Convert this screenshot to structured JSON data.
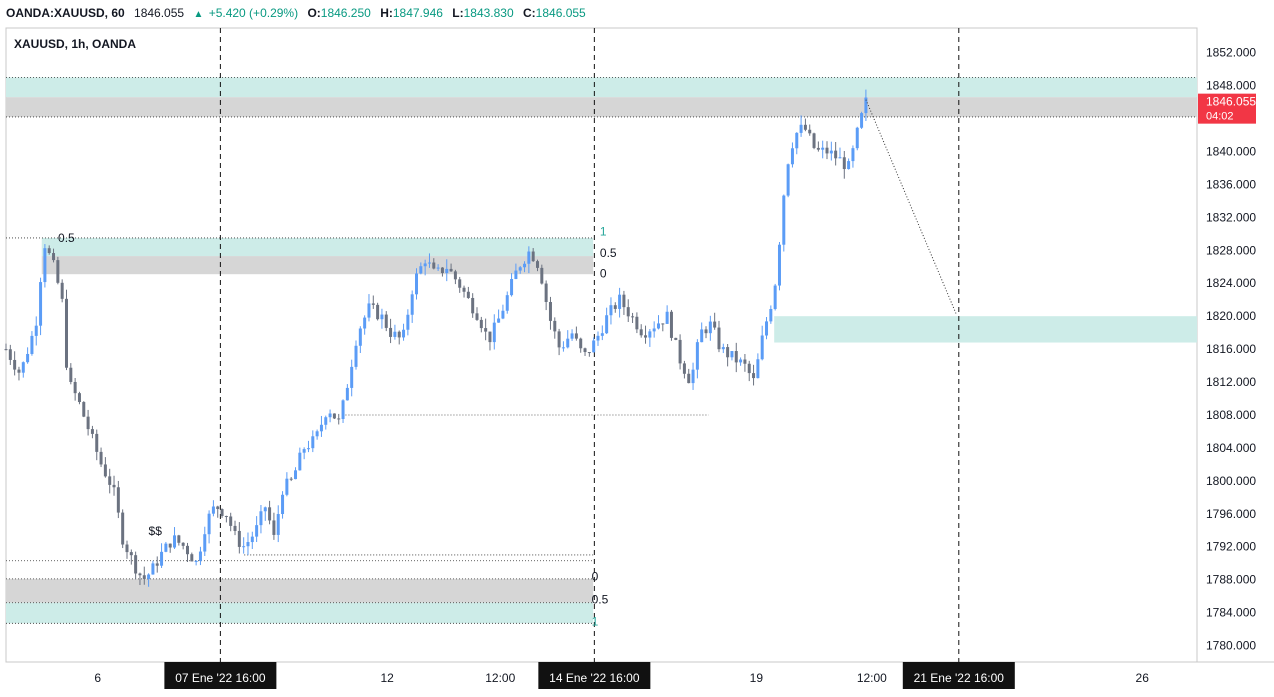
{
  "header": {
    "symbol": "OANDA:XAUUSD, 60",
    "last": "1846.055",
    "change": "+5.420 (+0.29%)",
    "o_label": "O:",
    "o_value": "1846.250",
    "h_label": "H:",
    "h_value": "1847.946",
    "l_label": "L:",
    "l_value": "1843.830",
    "c_label": "C:",
    "c_value": "1846.055",
    "up_icon": "triangle-up-icon"
  },
  "legend": "XAUUSD, 1h, OANDA",
  "price_tag": {
    "price": "1846.055",
    "countdown": "04:02",
    "color": "#f23645"
  },
  "colors": {
    "zone_teal": "#cdece8",
    "zone_gray": "#d6d6d6",
    "candle_up": "#5b9cf6",
    "candle_down": "#6b7280",
    "fib_teal": "#26a69a"
  },
  "chart_data": {
    "type": "candlestick",
    "ylim": [
      1778,
      1855
    ],
    "y_ticks": [
      "1852.000",
      "1848.000",
      "1844.000",
      "1840.000",
      "1836.000",
      "1832.000",
      "1828.000",
      "1824.000",
      "1820.000",
      "1816.000",
      "1812.000",
      "1808.000",
      "1804.000",
      "1800.000",
      "1796.000",
      "1792.000",
      "1788.000",
      "1784.000",
      "1780.000"
    ],
    "y_tick_values": [
      1852,
      1848,
      1844,
      1840,
      1836,
      1832,
      1828,
      1824,
      1820,
      1816,
      1812,
      1808,
      1804,
      1800,
      1796,
      1792,
      1788,
      1784,
      1780
    ],
    "x_ticks": [
      {
        "label": "6",
        "t": 0.077
      },
      {
        "label": "12",
        "t": 0.32
      },
      {
        "label": "12:00",
        "t": 0.415
      },
      {
        "label": "19",
        "t": 0.63
      },
      {
        "label": "12:00",
        "t": 0.727
      },
      {
        "label": "26",
        "t": 0.954
      }
    ],
    "x_highlight_labels": [
      {
        "label": "07 Ene '22   16:00",
        "t": 0.18
      },
      {
        "label": "14 Ene '22   16:00",
        "t": 0.494
      },
      {
        "label": "21 Ene '22   16:00",
        "t": 0.8
      }
    ],
    "path_points": [
      [
        0.0,
        1816
      ],
      [
        0.012,
        1813
      ],
      [
        0.025,
        1819
      ],
      [
        0.032,
        1829
      ],
      [
        0.04,
        1826
      ],
      [
        0.047,
        1822
      ],
      [
        0.052,
        1812
      ],
      [
        0.06,
        1810
      ],
      [
        0.07,
        1806
      ],
      [
        0.08,
        1802
      ],
      [
        0.09,
        1799
      ],
      [
        0.098,
        1793
      ],
      [
        0.107,
        1790
      ],
      [
        0.115,
        1788
      ],
      [
        0.122,
        1789
      ],
      [
        0.13,
        1791
      ],
      [
        0.14,
        1793
      ],
      [
        0.15,
        1792
      ],
      [
        0.16,
        1790
      ],
      [
        0.168,
        1795
      ],
      [
        0.176,
        1797
      ],
      [
        0.185,
        1796
      ],
      [
        0.193,
        1793
      ],
      [
        0.2,
        1792
      ],
      [
        0.21,
        1794
      ],
      [
        0.218,
        1797
      ],
      [
        0.225,
        1793
      ],
      [
        0.232,
        1799
      ],
      [
        0.24,
        1800
      ],
      [
        0.25,
        1804
      ],
      [
        0.26,
        1805
      ],
      [
        0.27,
        1809
      ],
      [
        0.28,
        1807
      ],
      [
        0.287,
        1812
      ],
      [
        0.295,
        1818
      ],
      [
        0.305,
        1821
      ],
      [
        0.315,
        1820
      ],
      [
        0.323,
        1818
      ],
      [
        0.333,
        1817
      ],
      [
        0.342,
        1824
      ],
      [
        0.352,
        1827
      ],
      [
        0.36,
        1825
      ],
      [
        0.37,
        1826
      ],
      [
        0.38,
        1824
      ],
      [
        0.388,
        1822
      ],
      [
        0.397,
        1820
      ],
      [
        0.405,
        1817
      ],
      [
        0.412,
        1819
      ],
      [
        0.42,
        1822
      ],
      [
        0.43,
        1826
      ],
      [
        0.44,
        1828
      ],
      [
        0.448,
        1826
      ],
      [
        0.456,
        1820
      ],
      [
        0.465,
        1816
      ],
      [
        0.475,
        1818
      ],
      [
        0.485,
        1815
      ],
      [
        0.495,
        1817
      ],
      [
        0.505,
        1820
      ],
      [
        0.515,
        1822
      ],
      [
        0.525,
        1820
      ],
      [
        0.535,
        1818
      ],
      [
        0.545,
        1819
      ],
      [
        0.555,
        1820
      ],
      [
        0.565,
        1815
      ],
      [
        0.575,
        1812
      ],
      [
        0.583,
        1818
      ],
      [
        0.592,
        1819
      ],
      [
        0.6,
        1816
      ],
      [
        0.61,
        1815
      ],
      [
        0.62,
        1814
      ],
      [
        0.628,
        1812
      ],
      [
        0.636,
        1818
      ],
      [
        0.645,
        1823
      ],
      [
        0.65,
        1830
      ],
      [
        0.655,
        1838
      ],
      [
        0.662,
        1842
      ],
      [
        0.67,
        1843
      ],
      [
        0.68,
        1840
      ],
      [
        0.69,
        1840
      ],
      [
        0.7,
        1839
      ],
      [
        0.708,
        1838
      ],
      [
        0.716,
        1843
      ],
      [
        0.722,
        1846
      ]
    ],
    "annotations": [
      {
        "text": "0.5",
        "series": "fib-upper-left"
      },
      {
        "text": "1",
        "series": "fib-upper"
      },
      {
        "text": "0.5",
        "series": "fib-upper"
      },
      {
        "text": "0",
        "series": "fib-upper"
      },
      {
        "text": "0",
        "series": "fib-lower"
      },
      {
        "text": "0.5",
        "series": "fib-lower"
      },
      {
        "text": "1",
        "series": "fib-lower"
      },
      {
        "text": "$$",
        "series": "liquidity"
      }
    ]
  }
}
